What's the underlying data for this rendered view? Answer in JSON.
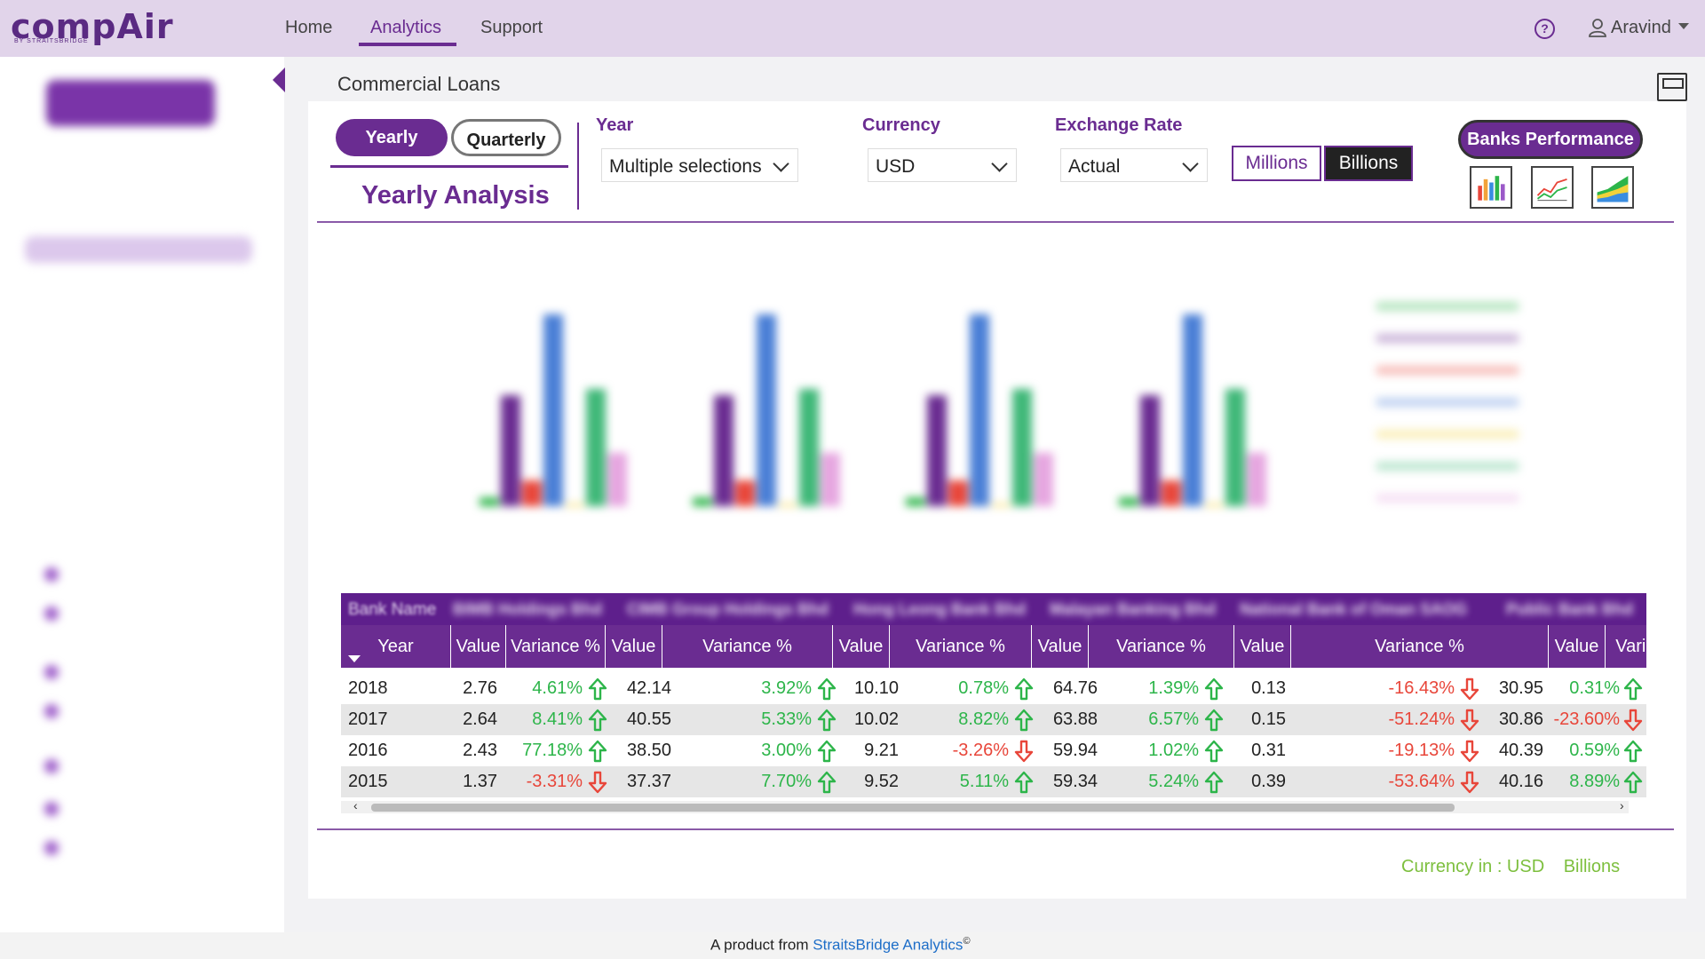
{
  "logo": {
    "name": "compAir",
    "sub": "BY STRAITSBRIDGE"
  },
  "nav": {
    "home": "Home",
    "analytics": "Analytics",
    "support": "Support",
    "user": "Aravind",
    "help_icon": "help-circle-icon",
    "user_icon": "user-icon"
  },
  "page": {
    "title": "Commercial Loans"
  },
  "toggle": {
    "yearly": "Yearly",
    "quarterly": "Quarterly"
  },
  "analysis_title": "Yearly Analysis",
  "filters": {
    "year": {
      "label": "Year",
      "value": "Multiple selections"
    },
    "currency": {
      "label": "Currency",
      "value": "USD"
    },
    "exchange": {
      "label": "Exchange Rate",
      "value": "Actual"
    }
  },
  "units": {
    "millions": "Millions",
    "billions": "Billions",
    "selected": "Billions"
  },
  "banks_performance": "Banks Performance",
  "colors": {
    "primary": "#6a2c91",
    "positive": "#2db54a",
    "negative": "#e8463a",
    "accent_green": "#7dbf3e"
  },
  "table": {
    "bank_name_label": "Bank Name",
    "banks": [
      "BIMB Holdings Bhd",
      "CIMB Group Holdings Bhd",
      "Hong Leong Bank Bhd",
      "Malayan Banking Bhd",
      "National Bank of Oman SAOG",
      "Public Bank Bhd"
    ],
    "year_header": "Year",
    "value_header": "Value",
    "variance_header": "Variance %",
    "rows": [
      {
        "year": "2018",
        "cells": [
          [
            "2.76",
            "4.61%"
          ],
          [
            "42.14",
            "3.92%"
          ],
          [
            "10.10",
            "0.78%"
          ],
          [
            "64.76",
            "1.39%"
          ],
          [
            "0.13",
            "-16.43%"
          ],
          [
            "30.95",
            "0.31%"
          ]
        ]
      },
      {
        "year": "2017",
        "cells": [
          [
            "2.64",
            "8.41%"
          ],
          [
            "40.55",
            "5.33%"
          ],
          [
            "10.02",
            "8.82%"
          ],
          [
            "63.88",
            "6.57%"
          ],
          [
            "0.15",
            "-51.24%"
          ],
          [
            "30.86",
            "-23.60%"
          ]
        ]
      },
      {
        "year": "2016",
        "cells": [
          [
            "2.43",
            "77.18%"
          ],
          [
            "38.50",
            "3.00%"
          ],
          [
            "9.21",
            "-3.26%"
          ],
          [
            "59.94",
            "1.02%"
          ],
          [
            "0.31",
            "-19.13%"
          ],
          [
            "40.39",
            "0.59%"
          ]
        ]
      },
      {
        "year": "2015",
        "cells": [
          [
            "1.37",
            "-3.31%"
          ],
          [
            "37.37",
            "7.70%"
          ],
          [
            "9.52",
            "5.11%"
          ],
          [
            "59.34",
            "5.24%"
          ],
          [
            "0.39",
            "-53.64%"
          ],
          [
            "40.16",
            "8.89%"
          ]
        ]
      }
    ]
  },
  "currency_note": {
    "label": "Currency in : USD",
    "unit": "Billions"
  },
  "footer": {
    "text": "A product from",
    "brand": "StraitsBridge Analytics",
    "mark": "©"
  }
}
